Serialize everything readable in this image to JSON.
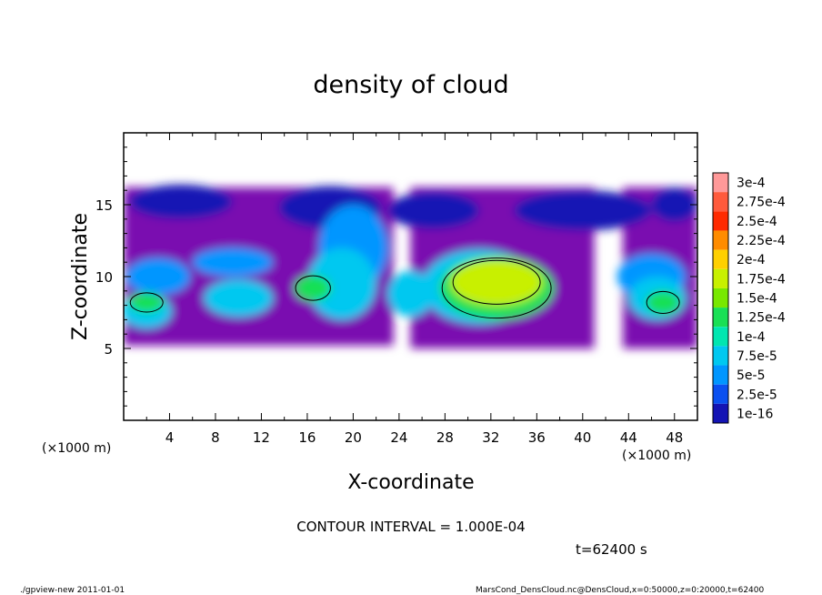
{
  "chart_data": {
    "type": "heatmap",
    "title": "density of cloud",
    "xlabel": "X-coordinate",
    "ylabel": "Z-coordinate",
    "x_unit": "(×1000 m)",
    "y_unit": "(×1000 m)",
    "xlim": [
      0,
      50
    ],
    "ylim": [
      0,
      20
    ],
    "x_ticks": [
      4,
      8,
      12,
      16,
      20,
      24,
      28,
      32,
      36,
      40,
      44,
      48
    ],
    "y_ticks": [
      5,
      10,
      15
    ],
    "colorbar": [
      {
        "label": "3e-4",
        "color": "#ff9999"
      },
      {
        "label": "2.75e-4",
        "color": "#ff5a3c"
      },
      {
        "label": "2.5e-4",
        "color": "#ff2a00"
      },
      {
        "label": "2.25e-4",
        "color": "#ff8c00"
      },
      {
        "label": "2e-4",
        "color": "#ffd000"
      },
      {
        "label": "1.75e-4",
        "color": "#c8f000"
      },
      {
        "label": "1.5e-4",
        "color": "#78e800"
      },
      {
        "label": "1.25e-4",
        "color": "#19e055"
      },
      {
        "label": "1e-4",
        "color": "#00e6b0"
      },
      {
        "label": "7.5e-5",
        "color": "#00c8f0"
      },
      {
        "label": "5e-5",
        "color": "#0096ff"
      },
      {
        "label": "2.5e-5",
        "color": "#0a50f0"
      },
      {
        "label": "1e-16",
        "color": "#1414b4"
      }
    ],
    "low_color": "#7a0fb0",
    "cloud_blobs": [
      {
        "x": 5,
        "z": 15.2,
        "rx": 4.5,
        "rz": 1.2,
        "level": 0
      },
      {
        "x": 18,
        "z": 14.8,
        "rx": 4.5,
        "rz": 1.5,
        "level": 0
      },
      {
        "x": 27,
        "z": 14.6,
        "rx": 4,
        "rz": 1.3,
        "level": 0
      },
      {
        "x": 40,
        "z": 14.6,
        "rx": 6,
        "rz": 1.4,
        "level": 0
      },
      {
        "x": 48,
        "z": 15,
        "rx": 2,
        "rz": 1.2,
        "level": 0
      },
      {
        "x": 3,
        "z": 10,
        "rx": 2.8,
        "rz": 1.3,
        "level": 1
      },
      {
        "x": 9.5,
        "z": 11,
        "rx": 3.5,
        "rz": 1,
        "level": 1
      },
      {
        "x": 20,
        "z": 12,
        "rx": 3,
        "rz": 3,
        "level": 1
      },
      {
        "x": 46,
        "z": 10,
        "rx": 3,
        "rz": 1.6,
        "level": 1
      },
      {
        "x": 2,
        "z": 7.6,
        "rx": 2.2,
        "rz": 1.2,
        "level": 2
      },
      {
        "x": 10,
        "z": 8.5,
        "rx": 3,
        "rz": 1.3,
        "level": 2
      },
      {
        "x": 19,
        "z": 9.5,
        "rx": 3,
        "rz": 2.5,
        "level": 2
      },
      {
        "x": 25,
        "z": 8.8,
        "rx": 2,
        "rz": 1.6,
        "level": 2
      },
      {
        "x": 31,
        "z": 9.3,
        "rx": 5,
        "rz": 2.6,
        "level": 2
      },
      {
        "x": 46.5,
        "z": 8.5,
        "rx": 2.5,
        "rz": 1.5,
        "level": 2
      },
      {
        "x": 2,
        "z": 8.2,
        "rx": 1.5,
        "rz": 0.7,
        "level": 3
      },
      {
        "x": 16.5,
        "z": 9.2,
        "rx": 1.6,
        "rz": 0.9,
        "level": 3
      },
      {
        "x": 32.5,
        "z": 9.2,
        "rx": 5,
        "rz": 2.2,
        "level": 3
      },
      {
        "x": 47,
        "z": 8.2,
        "rx": 1.5,
        "rz": 0.8,
        "level": 3
      },
      {
        "x": 32.5,
        "z": 9.6,
        "rx": 4,
        "rz": 1.6,
        "level": 4
      }
    ],
    "cloud_base": [
      {
        "x0": 0,
        "x1": 23.5,
        "z0": 5.2
      },
      {
        "x0": 25,
        "x1": 41,
        "z0": 5
      },
      {
        "x0": 43.5,
        "x1": 50,
        "z0": 5
      }
    ],
    "cloud_top_z": 16.2,
    "annotations": {
      "contour_interval": "CONTOUR INTERVAL = 1.000E-04",
      "time": "t=62400 s",
      "footer_left": "./gpview-new   2011-01-01",
      "footer_right": "MarsCond_DensCloud.nc@DensCloud,x=0:50000,z=0:20000,t=62400"
    }
  }
}
